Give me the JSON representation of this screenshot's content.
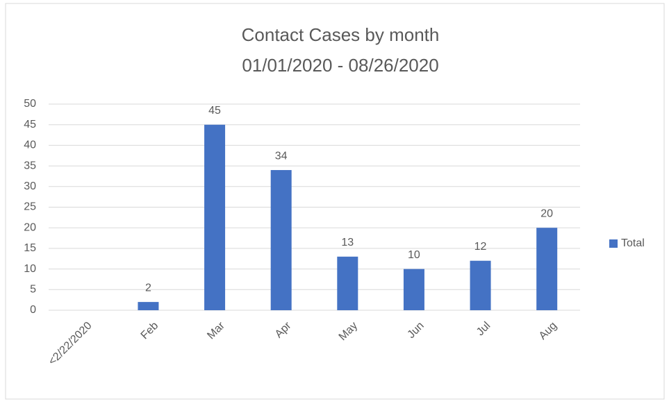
{
  "chart_data": {
    "type": "bar",
    "title": "Contact Cases by month",
    "subtitle": "01/01/2020 - 08/26/2020",
    "categories": [
      "<2/22/2020",
      "Feb",
      "Mar",
      "Apr",
      "May",
      "Jun",
      "Jul",
      "Aug"
    ],
    "series": [
      {
        "name": "Total",
        "color": "#4472c4",
        "values": [
          null,
          2,
          45,
          34,
          13,
          10,
          12,
          20
        ]
      }
    ],
    "ylim": [
      0,
      50
    ],
    "yticks": [
      0,
      5,
      10,
      15,
      20,
      25,
      30,
      35,
      40,
      45,
      50
    ],
    "grid": true,
    "legend": "right"
  }
}
